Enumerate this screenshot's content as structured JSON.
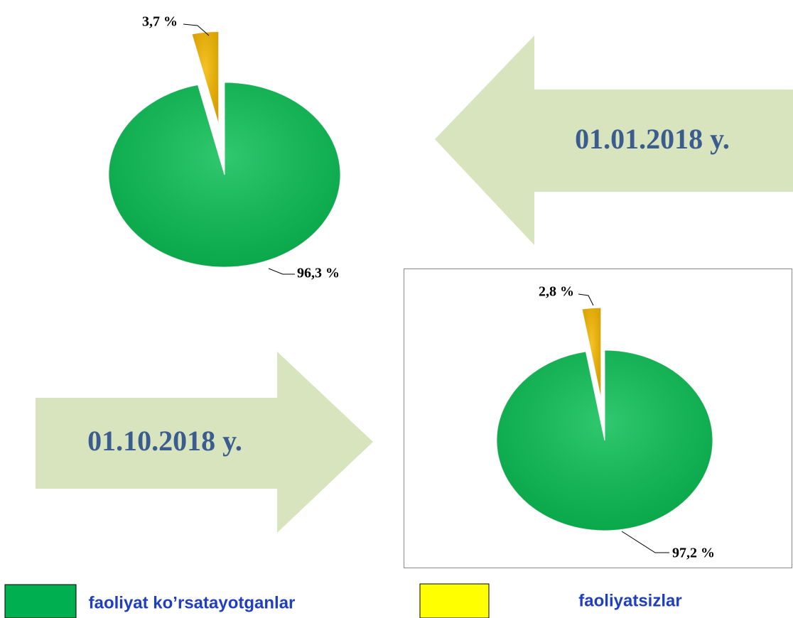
{
  "chart_data": [
    {
      "type": "pie",
      "title": "01.01.2018 y.",
      "values": [
        96.3,
        3.7
      ],
      "value_labels": [
        "96,3 %",
        "3,7 %"
      ],
      "colors": [
        "#0cbf55",
        "#f5b700"
      ]
    },
    {
      "type": "pie",
      "title": "01.10.2018 y.",
      "values": [
        97.2,
        2.8
      ],
      "value_labels": [
        "97,2 %",
        "2,8 %"
      ],
      "colors": [
        "#0cbf55",
        "#f5b700"
      ]
    }
  ],
  "legend": [
    {
      "label": "faoliyat ko’rsatayotganlar",
      "color": "#00b050"
    },
    {
      "label": "faoliyatsizlar",
      "color": "#ffff00"
    }
  ]
}
